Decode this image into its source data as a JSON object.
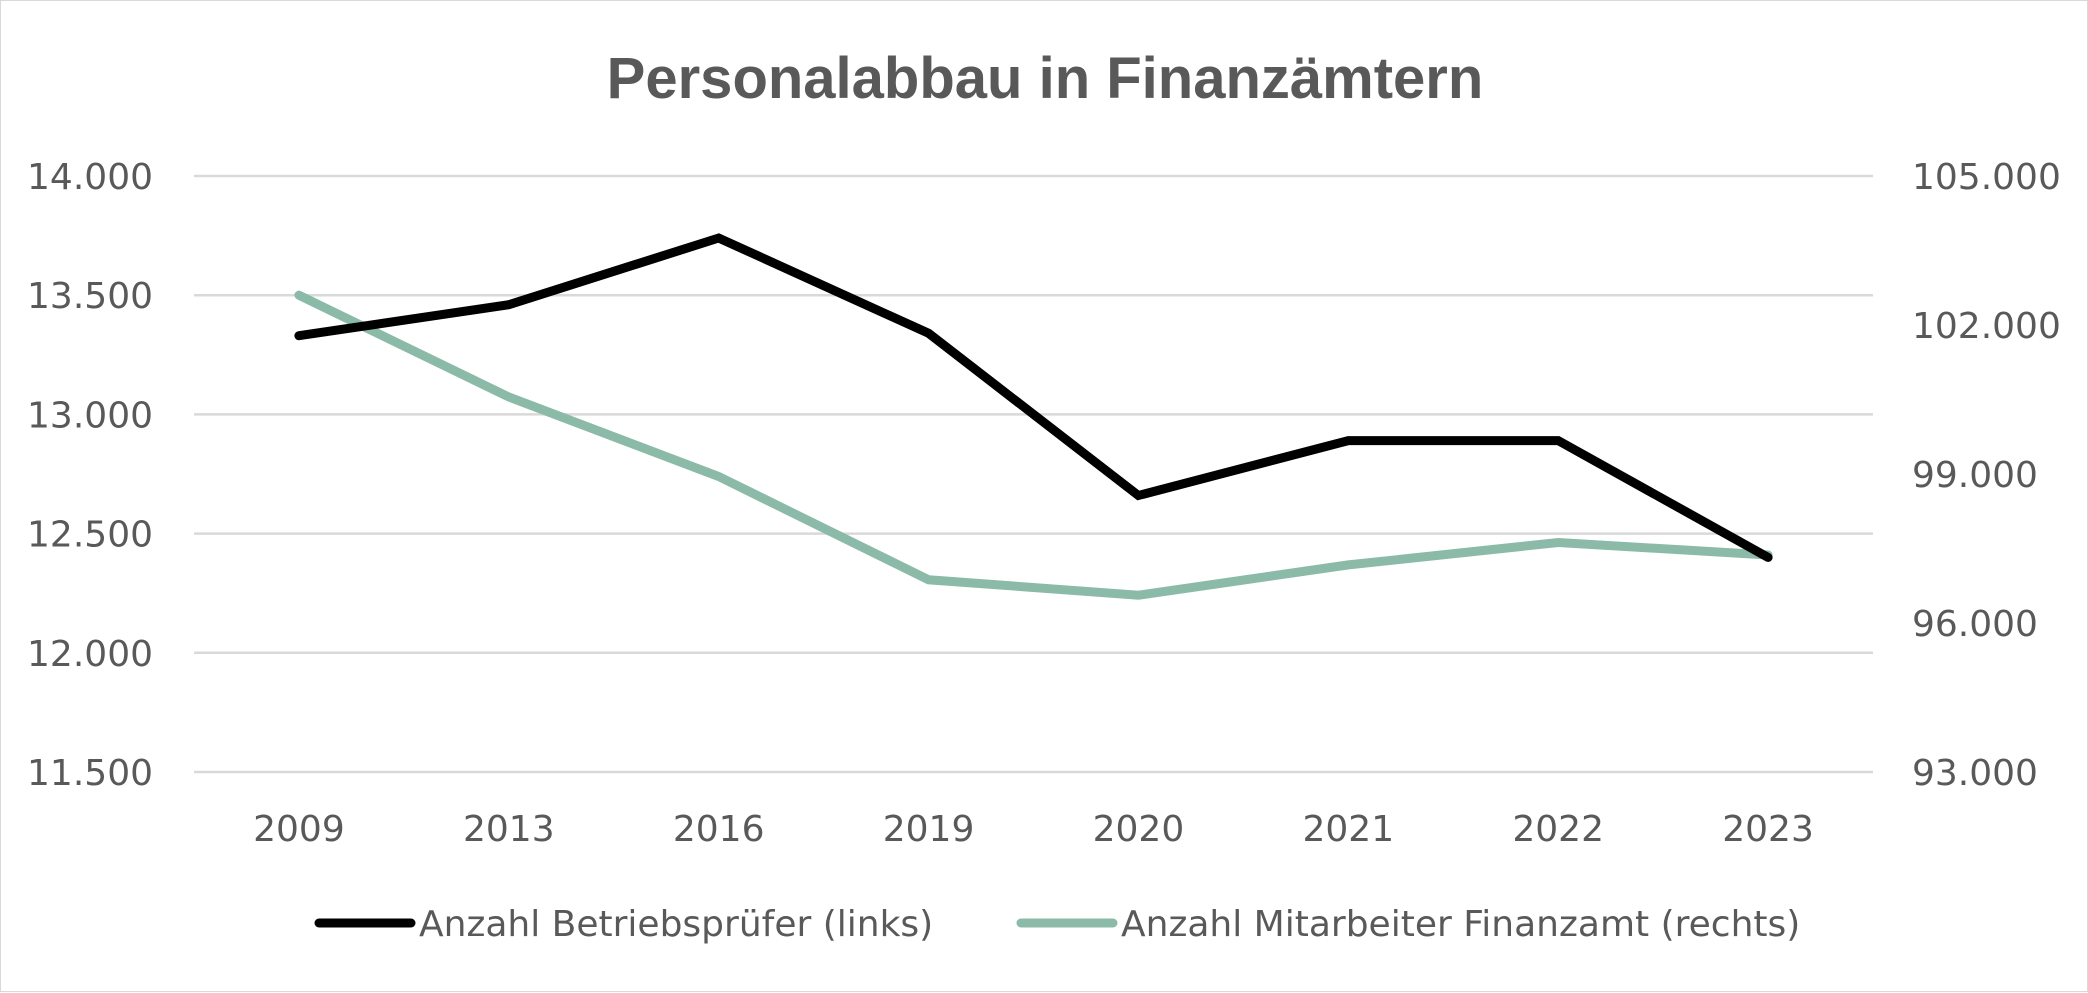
{
  "chart_data": {
    "type": "line",
    "title": "Personalabbau in Finanzämtern",
    "categories": [
      "2009",
      "2013",
      "2016",
      "2019",
      "2020",
      "2021",
      "2022",
      "2023"
    ],
    "xlabel": "",
    "y_left": {
      "ylabel": "",
      "ylim": [
        11500,
        14000
      ],
      "ticks": [
        11500,
        12000,
        12500,
        13000,
        13500,
        14000
      ],
      "tick_labels": [
        "11.500",
        "12.000",
        "12.500",
        "13.000",
        "13.500",
        "14.000"
      ]
    },
    "y_right": {
      "ylabel": "",
      "ylim": [
        93000,
        105000
      ],
      "ticks": [
        93000,
        96000,
        99000,
        102000,
        105000
      ],
      "tick_labels": [
        "93.000",
        "96.000",
        "99.000",
        "102.000",
        "105.000"
      ]
    },
    "series": [
      {
        "name": "Anzahl Betriebsprüfer (links)",
        "axis": "left",
        "color": "#000000",
        "values": [
          13330,
          13460,
          13740,
          13340,
          12660,
          12890,
          12890,
          12400
        ]
      },
      {
        "name": "Anzahl Mitarbeiter Finanzamt (rechts)",
        "axis": "right",
        "color": "#8cbaa8",
        "values": [
          102600,
          100550,
          98950,
          96870,
          96560,
          97170,
          97620,
          97370
        ]
      }
    ],
    "grid": true,
    "legend_position": "bottom"
  }
}
